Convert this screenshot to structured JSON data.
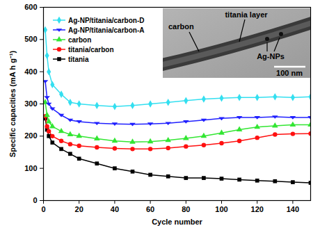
{
  "chart_data": {
    "type": "line",
    "x_label": "Cycle number",
    "y_label": "Specific capacities (mA h g⁻¹)",
    "x": [
      1,
      2,
      3,
      5,
      10,
      15,
      20,
      30,
      40,
      50,
      60,
      70,
      80,
      90,
      100,
      110,
      120,
      130,
      140,
      150
    ],
    "series": [
      {
        "name": "Ag-NP/titania/carbon-D",
        "color": "#33dff0",
        "marker": "diamond",
        "values": [
          530,
          450,
          400,
          360,
          330,
          305,
          300,
          295,
          292,
          295,
          300,
          305,
          310,
          315,
          318,
          320,
          320,
          322,
          320,
          322
        ]
      },
      {
        "name": "Ag-NP/titania/carbon-A",
        "color": "#2020ff",
        "marker": "triangle-down",
        "values": [
          370,
          320,
          300,
          285,
          265,
          250,
          245,
          240,
          238,
          237,
          238,
          240,
          245,
          250,
          255,
          258,
          258,
          260,
          258,
          258
        ]
      },
      {
        "name": "carbon",
        "color": "#33e633",
        "marker": "triangle",
        "values": [
          305,
          265,
          245,
          230,
          215,
          205,
          200,
          192,
          185,
          182,
          183,
          187,
          193,
          200,
          210,
          220,
          228,
          232,
          235,
          235
        ]
      },
      {
        "name": "titania/carbon",
        "color": "#ff1010",
        "marker": "circle",
        "values": [
          262,
          230,
          215,
          200,
          185,
          175,
          170,
          165,
          162,
          160,
          160,
          163,
          168,
          172,
          178,
          185,
          195,
          205,
          207,
          208
        ]
      },
      {
        "name": "titania",
        "color": "#000000",
        "marker": "square",
        "values": [
          255,
          220,
          200,
          180,
          160,
          145,
          130,
          115,
          100,
          90,
          80,
          75,
          70,
          70,
          68,
          65,
          62,
          60,
          57,
          55
        ]
      }
    ],
    "xlim": [
      0,
      150
    ],
    "xticks": [
      0,
      20,
      40,
      60,
      80,
      100,
      120,
      140
    ],
    "ylim": [
      0,
      600
    ],
    "yticks": [
      0,
      100,
      200,
      300,
      400,
      500,
      600
    ],
    "legend": "upper left",
    "grid": false,
    "annotations": [
      "titania layer",
      "carbon",
      "Ag-NPs",
      "100 nm"
    ]
  }
}
